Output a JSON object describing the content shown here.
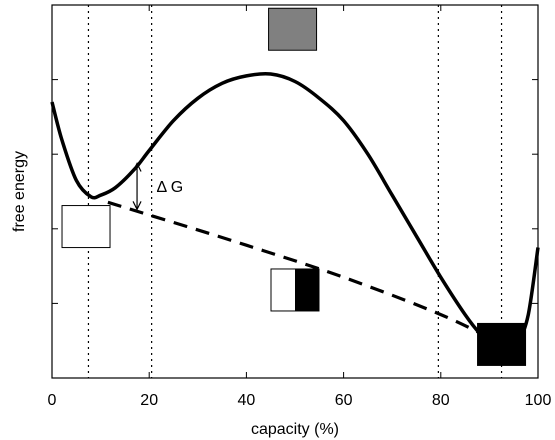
{
  "chart_data": {
    "type": "line",
    "xlabel": "capacity (%)",
    "ylabel": "free energy",
    "xlim": [
      0,
      100
    ],
    "x_ticks": [
      "0",
      "20",
      "40",
      "60",
      "80",
      "100"
    ],
    "x_tick_values": [
      0,
      20,
      40,
      60,
      80,
      100
    ],
    "y_tick_labels_shown": false,
    "grid": false,
    "legend": "none",
    "vertical_reference_lines": [
      7.5,
      20.5,
      79.5,
      92.5
    ],
    "series": [
      {
        "style": "solid",
        "color": "#000000",
        "x": [
          0,
          2,
          5,
          8,
          10,
          13,
          17,
          20,
          25,
          30,
          35,
          40,
          45,
          50,
          55,
          60,
          65,
          70,
          75,
          80,
          85,
          88,
          90,
          92,
          94,
          96,
          98,
          100
        ],
        "y": [
          0.74,
          0.64,
          0.53,
          0.486,
          0.49,
          0.51,
          0.56,
          0.61,
          0.69,
          0.75,
          0.79,
          0.81,
          0.815,
          0.795,
          0.75,
          0.69,
          0.6,
          0.49,
          0.38,
          0.27,
          0.17,
          0.12,
          0.1,
          0.087,
          0.082,
          0.1,
          0.17,
          0.35
        ]
      },
      {
        "style": "dashed",
        "color": "#000000",
        "x": [
          11.5,
          20,
          40,
          60,
          80,
          92
        ],
        "y": [
          0.471,
          0.437,
          0.356,
          0.27,
          0.17,
          0.094
        ]
      }
    ],
    "annotations": [
      {
        "text": "Δ G",
        "x": 21.5,
        "y": 0.515
      }
    ],
    "delta_g_arrow": {
      "x": 17.5,
      "y_low": 0.452,
      "y_high": 0.575
    },
    "state_boxes": [
      {
        "name": "empty-state-box",
        "x_center": 7,
        "y_center": 0.406,
        "filled_fraction": 0,
        "fill_color": "#ffffff"
      },
      {
        "name": "half-state-box",
        "x_center": 50,
        "y_center": 0.236,
        "filled_fraction": 0.5,
        "fill_color": "#000000"
      },
      {
        "name": "full-state-box",
        "x_center": 92.5,
        "y_center": 0.09,
        "filled_fraction": 1,
        "fill_color": "#000000"
      },
      {
        "name": "transition-state-box",
        "x_center": 49.5,
        "y_center": 0.935,
        "filled_fraction": 1,
        "fill_color": "#808080"
      }
    ]
  }
}
